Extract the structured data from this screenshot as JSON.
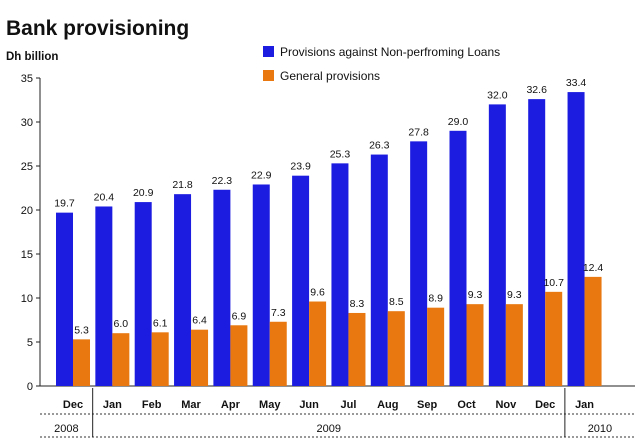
{
  "chart_data": {
    "type": "bar",
    "title": "Bank provisioning",
    "unit_label": "Dh billion",
    "ylim": [
      0,
      35
    ],
    "yticks": [
      0,
      5,
      10,
      15,
      20,
      25,
      30,
      35
    ],
    "grid": false,
    "legend_position": "top",
    "categories": [
      "Dec",
      "Jan",
      "Feb",
      "Mar",
      "Apr",
      "May",
      "Jun",
      "Jul",
      "Aug",
      "Sep",
      "Oct",
      "Nov",
      "Dec",
      "Jan"
    ],
    "years": [
      {
        "label": "2008",
        "from": 0,
        "to": 0
      },
      {
        "label": "2009",
        "from": 1,
        "to": 12
      },
      {
        "label": "2010",
        "from": 13,
        "to": 13
      }
    ],
    "series": [
      {
        "name": "Provisions against Non-perfroming Loans",
        "color": "#1c1ce0",
        "values": [
          19.7,
          20.4,
          20.9,
          21.8,
          22.3,
          22.9,
          23.9,
          25.3,
          26.3,
          27.8,
          29.0,
          32.0,
          32.6,
          33.4
        ],
        "labels": [
          "19.7",
          "20.4",
          "20.9",
          "21.8",
          "22.3",
          "22.9",
          "23.9",
          "25.3",
          "26.3",
          "27.8",
          "29.0",
          "32.0",
          "32.6",
          "33.4"
        ]
      },
      {
        "name": "General provisions",
        "color": "#e8780f",
        "values": [
          5.3,
          6.0,
          6.1,
          6.4,
          6.9,
          7.3,
          9.6,
          8.3,
          8.5,
          8.9,
          9.3,
          9.3,
          10.7,
          12.4
        ],
        "labels": [
          "5.3",
          "6.0",
          "6.1",
          "6.4",
          "6.9",
          "7.3",
          "9.6",
          "8.3",
          "8.5",
          "8.9",
          "9.3",
          "9.3",
          "10.7",
          "12.4"
        ]
      }
    ]
  }
}
